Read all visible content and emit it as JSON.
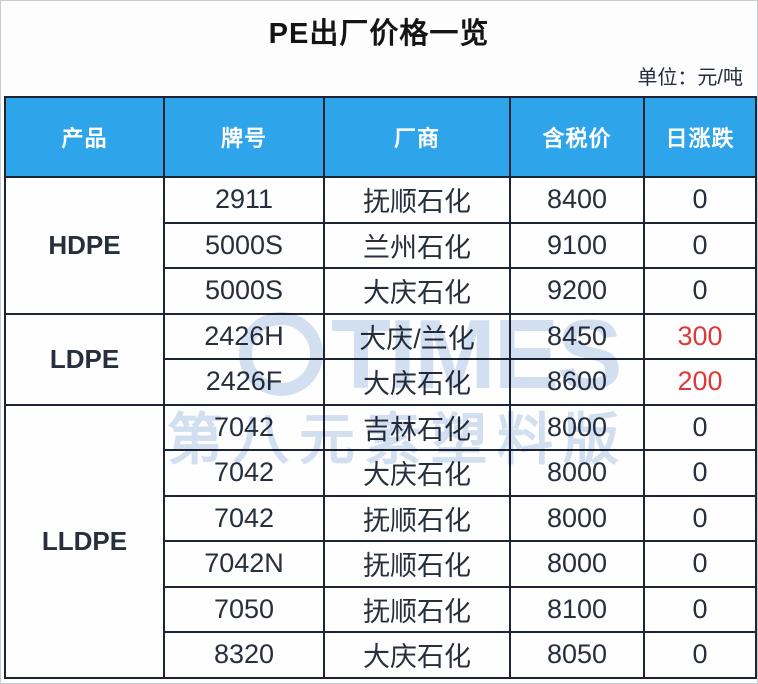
{
  "title": "PE出厂价格一览",
  "unit_label": "单位：元/吨",
  "watermark": {
    "line1": "TIMES",
    "line2": "第八元素塑料版"
  },
  "colors": {
    "header_bg": "#2ea4eb",
    "border": "#1d2434",
    "text": "#272e3c",
    "up": "#dc3a38",
    "watermark": "#b7cdea"
  },
  "table": {
    "headers": [
      "产品",
      "牌号",
      "厂商",
      "含税价",
      "日涨跌"
    ],
    "groups": [
      {
        "product": "HDPE",
        "rows": [
          {
            "grade": "2911",
            "maker": "抚顺石化",
            "price": "8400",
            "change": "0",
            "change_up": false
          },
          {
            "grade": "5000S",
            "maker": "兰州石化",
            "price": "9100",
            "change": "0",
            "change_up": false
          },
          {
            "grade": "5000S",
            "maker": "大庆石化",
            "price": "9200",
            "change": "0",
            "change_up": false
          }
        ]
      },
      {
        "product": "LDPE",
        "rows": [
          {
            "grade": "2426H",
            "maker": "大庆/兰化",
            "price": "8450",
            "change": "300",
            "change_up": true
          },
          {
            "grade": "2426F",
            "maker": "大庆石化",
            "price": "8600",
            "change": "200",
            "change_up": true
          }
        ]
      },
      {
        "product": "LLDPE",
        "rows": [
          {
            "grade": "7042",
            "maker": "吉林石化",
            "price": "8000",
            "change": "0",
            "change_up": false
          },
          {
            "grade": "7042",
            "maker": "大庆石化",
            "price": "8000",
            "change": "0",
            "change_up": false
          },
          {
            "grade": "7042",
            "maker": "抚顺石化",
            "price": "8000",
            "change": "0",
            "change_up": false
          },
          {
            "grade": "7042N",
            "maker": "抚顺石化",
            "price": "8000",
            "change": "0",
            "change_up": false
          },
          {
            "grade": "7050",
            "maker": "抚顺石化",
            "price": "8100",
            "change": "0",
            "change_up": false
          },
          {
            "grade": "8320",
            "maker": "大庆石化",
            "price": "8050",
            "change": "0",
            "change_up": false
          }
        ]
      }
    ]
  },
  "chart_data": {
    "type": "table",
    "title": "PE出厂价格一览",
    "unit": "单位：元/吨",
    "columns": [
      "产品",
      "牌号",
      "厂商",
      "含税价",
      "日涨跌"
    ],
    "rows": [
      [
        "HDPE",
        "2911",
        "抚顺石化",
        8400,
        0
      ],
      [
        "HDPE",
        "5000S",
        "兰州石化",
        9100,
        0
      ],
      [
        "HDPE",
        "5000S",
        "大庆石化",
        9200,
        0
      ],
      [
        "LDPE",
        "2426H",
        "大庆/兰化",
        8450,
        300
      ],
      [
        "LDPE",
        "2426F",
        "大庆石化",
        8600,
        200
      ],
      [
        "LLDPE",
        "7042",
        "吉林石化",
        8000,
        0
      ],
      [
        "LLDPE",
        "7042",
        "大庆石化",
        8000,
        0
      ],
      [
        "LLDPE",
        "7042",
        "抚顺石化",
        8000,
        0
      ],
      [
        "LLDPE",
        "7042N",
        "抚顺石化",
        8000,
        0
      ],
      [
        "LLDPE",
        "7050",
        "抚顺石化",
        8100,
        0
      ],
      [
        "LLDPE",
        "8320",
        "大庆石化",
        8050,
        0
      ]
    ],
    "notes": "日涨跌 values 300 and 200 rendered in red (price up); zeros in dark navy"
  }
}
